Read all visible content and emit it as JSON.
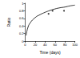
{
  "chart_data": {
    "type": "line",
    "x_label": "Time (days)",
    "y_label": "Ratio",
    "xlim": [
      0,
      100
    ],
    "xticks": [
      0,
      20,
      40,
      60,
      80,
      100
    ],
    "ylim": [
      0,
      1
    ],
    "yticks": [
      0,
      0.2,
      0.4,
      0.6,
      0.8,
      1
    ],
    "grid": false,
    "series": [
      {
        "type": "line",
        "color": "#000000",
        "line_style": "solid",
        "x": [
          2,
          5,
          10,
          20,
          30,
          40,
          50,
          60,
          70,
          80,
          90,
          100
        ],
        "values": [
          0.15,
          0.34,
          0.48,
          0.62,
          0.7,
          0.76,
          0.81,
          0.85,
          0.88,
          0.9,
          0.93,
          0.95
        ]
      },
      {
        "type": "scatter",
        "color": "#000000",
        "marker": "circle",
        "x": [
          47,
          55,
          78
        ],
        "values": [
          0.72,
          0.8,
          0.8
        ]
      }
    ]
  }
}
